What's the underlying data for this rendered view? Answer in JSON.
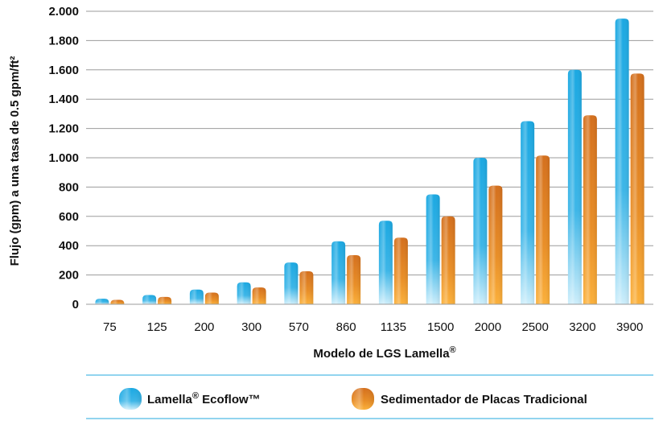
{
  "chart_data": {
    "type": "bar",
    "xlabel": "Modelo de LGS Lamella",
    "xlabel_superscript": "®",
    "ylabel": "Flujo (gpm) a una tasa de 0.5 gpm/ft²",
    "categories": [
      "75",
      "125",
      "200",
      "300",
      "570",
      "860",
      "1135",
      "1500",
      "2000",
      "2500",
      "3200",
      "3900"
    ],
    "ylim": [
      0,
      2000
    ],
    "yticks": [
      0,
      200,
      400,
      600,
      800,
      1000,
      1200,
      1400,
      1600,
      1800,
      2000
    ],
    "ytick_labels": [
      "0",
      "200",
      "400",
      "600",
      "800",
      "1.000",
      "1.200",
      "1.400",
      "1.600",
      "1.800",
      "2.000"
    ],
    "grid": true,
    "legend_position": "bottom",
    "series": [
      {
        "name_parts": [
          "Lamella",
          "®",
          " Ecoflow™"
        ],
        "values": [
          38,
          63,
          100,
          150,
          285,
          430,
          570,
          750,
          1000,
          1250,
          1600,
          1950
        ],
        "color": "#1aa8e2",
        "color_light": "#c5eaf9"
      },
      {
        "name": "Sedimentador de Placas Tradicional",
        "values": [
          30,
          50,
          80,
          115,
          225,
          335,
          455,
          600,
          810,
          1015,
          1290,
          1575
        ],
        "color": "#d9741f",
        "color_light": "#f7a936"
      }
    ]
  }
}
